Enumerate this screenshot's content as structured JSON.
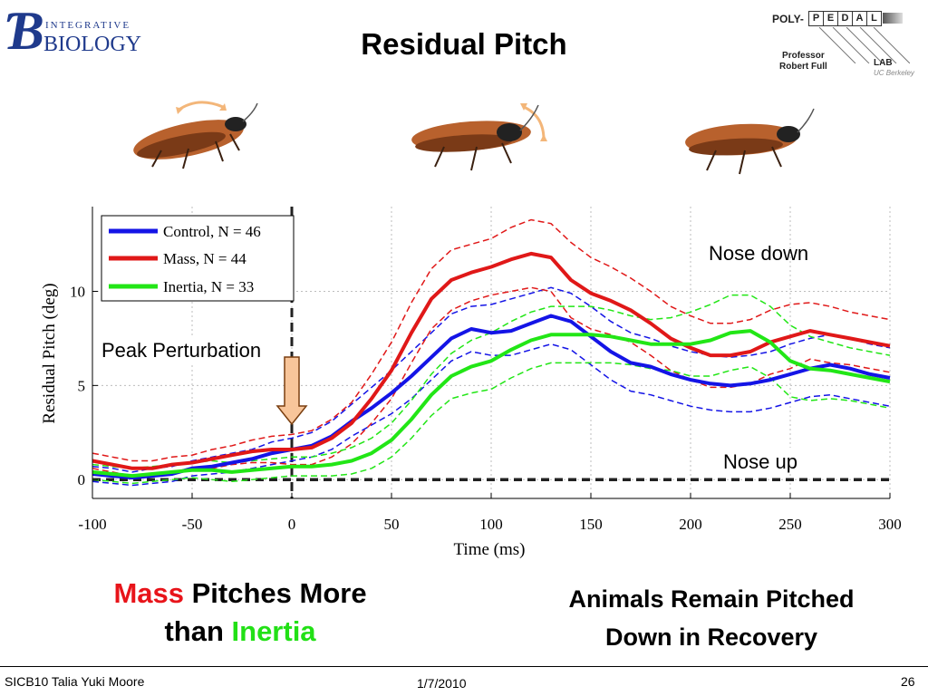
{
  "header": {
    "title": "Residual Pitch",
    "logo_left": {
      "top": "INTEGRATIVE",
      "bottom": "BIOLOGY"
    },
    "logo_right": {
      "poly": "POLY-",
      "letters": [
        "P",
        "E",
        "D",
        "A",
        "L"
      ],
      "professor": "Professor",
      "name": "Robert Full",
      "lab": "LAB",
      "institution": "UC Berkeley"
    }
  },
  "illustrations": [
    "cockroach-icon",
    "cockroach-icon",
    "cockroach-icon"
  ],
  "chart_data": {
    "type": "line",
    "title": "",
    "xlabel": "Time (ms)",
    "ylabel": "Residual Pitch (deg)",
    "xlim": [
      -100,
      300
    ],
    "ylim": [
      -1,
      14.5
    ],
    "xticks": [
      -100,
      -50,
      0,
      50,
      100,
      150,
      200,
      250,
      300
    ],
    "yticks": [
      0,
      5,
      10
    ],
    "grid": true,
    "legend_position": "top-left",
    "colors": {
      "control": "#1414e6",
      "mass": "#e01818",
      "inertia": "#22e616"
    },
    "series": [
      {
        "name": "Control, N = 46",
        "color": "#1414e6",
        "x": [
          -100,
          -90,
          -80,
          -70,
          -60,
          -50,
          -40,
          -30,
          -20,
          -10,
          0,
          10,
          20,
          30,
          40,
          50,
          60,
          70,
          80,
          90,
          100,
          110,
          120,
          130,
          140,
          150,
          160,
          170,
          180,
          190,
          200,
          210,
          220,
          230,
          240,
          250,
          260,
          270,
          280,
          290,
          300
        ],
        "mean": [
          0.3,
          0.2,
          0.1,
          0.2,
          0.3,
          0.6,
          0.7,
          0.9,
          1.1,
          1.4,
          1.6,
          1.8,
          2.3,
          3.1,
          3.8,
          4.6,
          5.5,
          6.5,
          7.5,
          8.0,
          7.8,
          7.9,
          8.3,
          8.7,
          8.4,
          7.6,
          6.8,
          6.2,
          6.0,
          5.6,
          5.3,
          5.1,
          5.0,
          5.1,
          5.3,
          5.6,
          5.9,
          6.1,
          5.9,
          5.6,
          5.4
        ],
        "upper": [
          0.7,
          0.6,
          0.4,
          0.6,
          0.7,
          1.0,
          1.2,
          1.4,
          1.6,
          2.0,
          2.2,
          2.5,
          3.1,
          4.0,
          4.9,
          5.8,
          6.8,
          7.8,
          8.8,
          9.2,
          9.3,
          9.6,
          9.9,
          10.2,
          9.9,
          9.2,
          8.4,
          7.8,
          7.5,
          7.1,
          6.8,
          6.6,
          6.5,
          6.6,
          6.8,
          7.2,
          7.5,
          7.7,
          7.5,
          7.2,
          7.0
        ],
        "lower": [
          -0.1,
          -0.2,
          -0.3,
          -0.2,
          -0.1,
          0.2,
          0.3,
          0.4,
          0.6,
          0.8,
          1.0,
          1.2,
          1.6,
          2.3,
          2.9,
          3.5,
          4.3,
          5.3,
          6.3,
          6.8,
          6.6,
          6.6,
          6.9,
          7.2,
          6.9,
          6.1,
          5.3,
          4.7,
          4.5,
          4.2,
          3.9,
          3.7,
          3.6,
          3.6,
          3.8,
          4.1,
          4.4,
          4.5,
          4.3,
          4.1,
          3.9
        ]
      },
      {
        "name": "Mass, N = 44",
        "color": "#e01818",
        "x": [
          -100,
          -90,
          -80,
          -70,
          -60,
          -50,
          -40,
          -30,
          -20,
          -10,
          0,
          10,
          20,
          30,
          40,
          50,
          60,
          70,
          80,
          90,
          100,
          110,
          120,
          130,
          140,
          150,
          160,
          170,
          180,
          190,
          200,
          210,
          220,
          230,
          240,
          250,
          260,
          270,
          280,
          290,
          300
        ],
        "mean": [
          1.0,
          0.8,
          0.6,
          0.6,
          0.8,
          0.9,
          1.1,
          1.3,
          1.5,
          1.6,
          1.6,
          1.7,
          2.2,
          3.0,
          4.3,
          5.8,
          7.8,
          9.6,
          10.6,
          11.0,
          11.3,
          11.7,
          12.0,
          11.8,
          10.6,
          9.9,
          9.5,
          9.0,
          8.3,
          7.5,
          7.0,
          6.6,
          6.6,
          6.8,
          7.3,
          7.6,
          7.9,
          7.7,
          7.5,
          7.3,
          7.1
        ],
        "upper": [
          1.4,
          1.2,
          1.0,
          1.0,
          1.2,
          1.3,
          1.6,
          1.8,
          2.1,
          2.3,
          2.4,
          2.6,
          3.2,
          4.1,
          5.6,
          7.3,
          9.4,
          11.2,
          12.2,
          12.5,
          12.8,
          13.4,
          13.8,
          13.6,
          12.6,
          11.8,
          11.3,
          10.7,
          10.0,
          9.2,
          8.7,
          8.3,
          8.3,
          8.5,
          9.0,
          9.3,
          9.4,
          9.2,
          8.9,
          8.7,
          8.5
        ],
        "lower": [
          0.6,
          0.4,
          0.2,
          0.2,
          0.4,
          0.5,
          0.6,
          0.8,
          0.9,
          0.9,
          0.8,
          0.8,
          1.2,
          1.9,
          3.0,
          4.3,
          6.2,
          8.0,
          9.0,
          9.5,
          9.8,
          10.0,
          10.2,
          10.0,
          8.6,
          8.0,
          7.7,
          7.3,
          6.6,
          5.8,
          5.3,
          4.9,
          4.9,
          5.1,
          5.6,
          5.9,
          6.4,
          6.2,
          6.1,
          5.9,
          5.7
        ]
      },
      {
        "name": "Inertia, N = 33",
        "color": "#22e616",
        "x": [
          -100,
          -90,
          -80,
          -70,
          -60,
          -50,
          -40,
          -30,
          -20,
          -10,
          0,
          10,
          20,
          30,
          40,
          50,
          60,
          70,
          80,
          90,
          100,
          110,
          120,
          130,
          140,
          150,
          160,
          170,
          180,
          190,
          200,
          210,
          220,
          230,
          240,
          250,
          260,
          270,
          280,
          290,
          300
        ],
        "mean": [
          0.4,
          0.3,
          0.2,
          0.3,
          0.4,
          0.5,
          0.5,
          0.4,
          0.5,
          0.6,
          0.7,
          0.7,
          0.8,
          1.0,
          1.4,
          2.1,
          3.2,
          4.5,
          5.5,
          6.0,
          6.3,
          6.9,
          7.4,
          7.7,
          7.7,
          7.7,
          7.6,
          7.4,
          7.2,
          7.2,
          7.2,
          7.4,
          7.8,
          7.9,
          7.3,
          6.3,
          5.9,
          5.8,
          5.6,
          5.4,
          5.2
        ],
        "upper": [
          0.8,
          0.7,
          0.6,
          0.7,
          0.8,
          0.9,
          1.0,
          0.9,
          1.0,
          1.1,
          1.2,
          1.2,
          1.4,
          1.7,
          2.2,
          3.0,
          4.2,
          5.6,
          6.7,
          7.4,
          7.8,
          8.4,
          8.9,
          9.2,
          9.2,
          9.2,
          9.0,
          8.7,
          8.5,
          8.6,
          8.9,
          9.3,
          9.8,
          9.8,
          9.2,
          8.2,
          7.6,
          7.3,
          7.0,
          6.8,
          6.6
        ],
        "lower": [
          0.0,
          -0.1,
          -0.2,
          -0.1,
          0.0,
          0.1,
          0.0,
          -0.1,
          0.0,
          0.1,
          0.2,
          0.2,
          0.2,
          0.3,
          0.6,
          1.2,
          2.2,
          3.4,
          4.3,
          4.6,
          4.8,
          5.4,
          5.9,
          6.2,
          6.2,
          6.2,
          6.2,
          6.1,
          5.9,
          5.8,
          5.5,
          5.5,
          5.8,
          6.0,
          5.4,
          4.4,
          4.2,
          4.3,
          4.2,
          4.0,
          3.8
        ]
      }
    ],
    "annotations": {
      "peak_perturbation": {
        "text": "Peak Perturbation",
        "x": 0
      },
      "nose_down": "Nose down",
      "nose_up": "Nose up",
      "baseline_y": 0
    }
  },
  "captions": {
    "left": {
      "mass": "Mass",
      "pitches_more": "Pitches More",
      "than": "than",
      "inertia": "Inertia"
    },
    "right": {
      "line1": "Animals Remain Pitched",
      "line2": "Down in Recovery"
    }
  },
  "footer": {
    "left": "SICB10 Talia Yuki Moore",
    "center": "1/7/2010",
    "right": "26"
  }
}
